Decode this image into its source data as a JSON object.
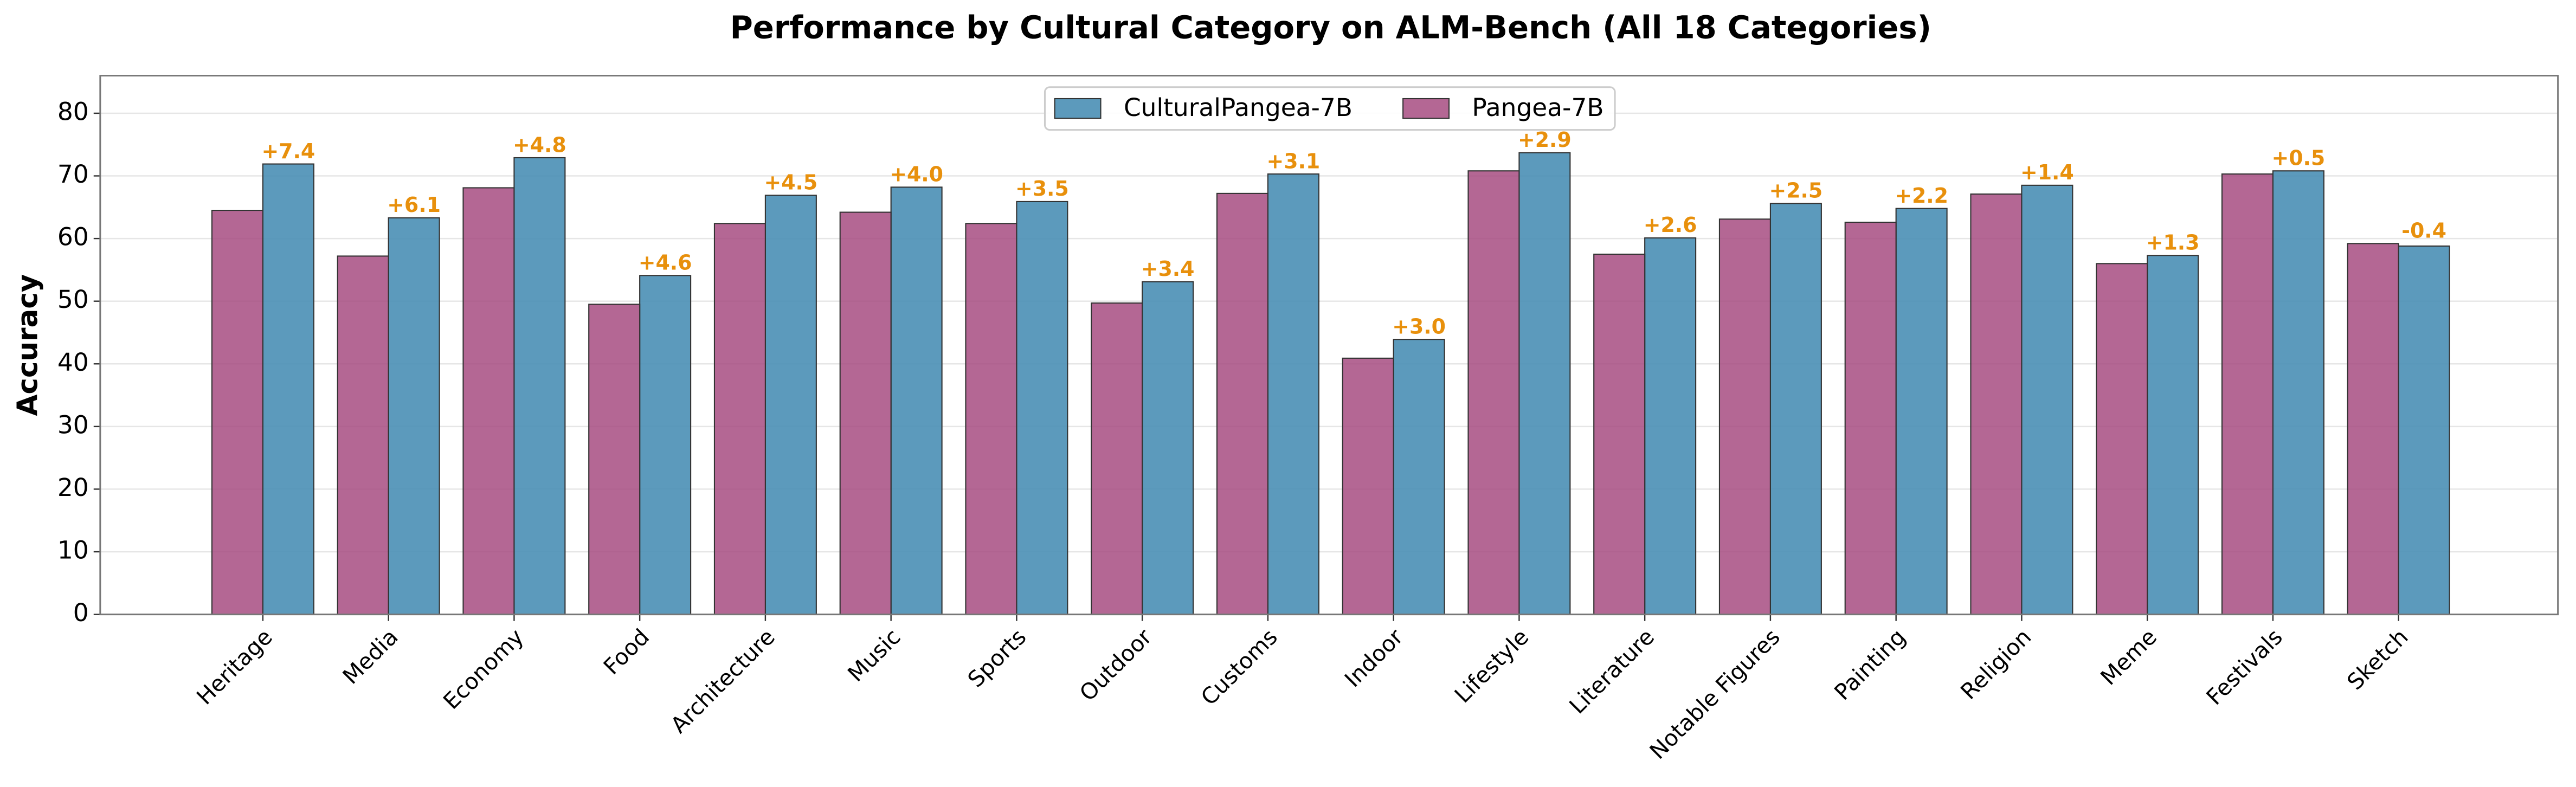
{
  "chart_data": {
    "type": "bar",
    "title": "Performance by Cultural Category on ALM-Bench (All 18 Categories)",
    "y_label": "Accuracy",
    "categories": [
      "Heritage",
      "Media",
      "Economy",
      "Food",
      "Architecture",
      "Music",
      "Sports",
      "Outdoor",
      "Customs",
      "Indoor",
      "Lifestyle",
      "Literature",
      "Notable Figures",
      "Painting",
      "Religion",
      "Meme",
      "Festivals",
      "Sketch"
    ],
    "series": [
      {
        "name": "CulturalPangea-7B",
        "color": "#4a8fb5",
        "values": [
          71.9,
          63.3,
          72.9,
          54.1,
          66.9,
          68.2,
          65.9,
          53.1,
          70.3,
          43.9,
          73.7,
          60.1,
          65.6,
          64.8,
          68.5,
          57.3,
          70.8,
          58.8
        ]
      },
      {
        "name": "Pangea-7B",
        "color": "#a3457c",
        "values": [
          64.5,
          57.2,
          68.1,
          49.5,
          62.4,
          64.2,
          62.4,
          49.7,
          67.2,
          40.9,
          70.8,
          57.5,
          63.1,
          62.6,
          67.1,
          56.0,
          70.3,
          59.2
        ]
      }
    ],
    "annotations": [
      "+7.4",
      "+6.1",
      "+4.8",
      "+4.6",
      "+4.5",
      "+4.0",
      "+3.5",
      "+3.4",
      "+3.1",
      "+3.0",
      "+2.9",
      "+2.6",
      "+2.5",
      "+2.2",
      "+1.4",
      "+1.3",
      "+0.5",
      "-0.4"
    ],
    "annotation_color": "#e8900c",
    "ylim": [
      0,
      86
    ],
    "yticks": [
      0,
      10,
      20,
      30,
      40,
      50,
      60,
      70,
      80
    ],
    "grid": true,
    "legend": "upper center"
  }
}
